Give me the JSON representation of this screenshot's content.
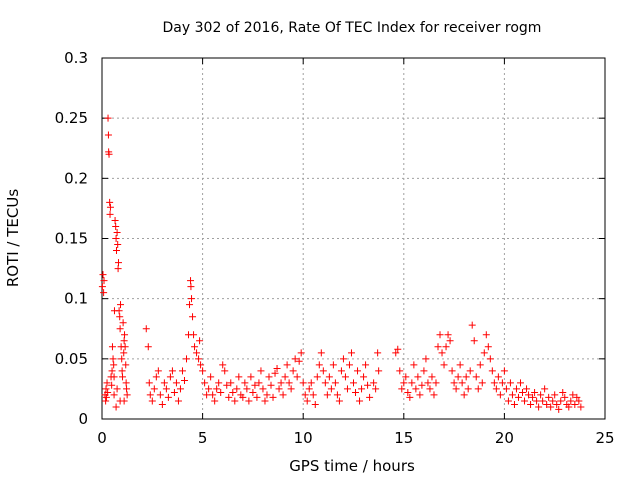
{
  "chart_data": {
    "type": "scatter",
    "title": "Day 302 of 2016, Rate Of TEC Index for receiver rogm",
    "xlabel": "GPS time / hours",
    "ylabel": "ROTI / TECUs",
    "xlim": [
      0,
      25
    ],
    "ylim": [
      0,
      0.3
    ],
    "xticks": [
      0,
      5,
      10,
      15,
      20,
      25
    ],
    "xtick_labels": [
      "0",
      "5",
      "10",
      "15",
      "20",
      "25"
    ],
    "yticks": [
      0,
      0.05,
      0.1,
      0.15,
      0.2,
      0.25,
      0.3
    ],
    "ytick_labels": [
      "0",
      "0.05",
      "0.1",
      "0.15",
      "0.2",
      "0.25",
      "0.3"
    ],
    "grid": true,
    "marker": "+",
    "series": [
      {
        "name": "ROTI",
        "color": "#ff0000",
        "points": [
          [
            0.02,
            0.11
          ],
          [
            0.05,
            0.12
          ],
          [
            0.08,
            0.105
          ],
          [
            0.1,
            0.115
          ],
          [
            0.15,
            0.02
          ],
          [
            0.18,
            0.015
          ],
          [
            0.2,
            0.025
          ],
          [
            0.22,
            0.018
          ],
          [
            0.25,
            0.03
          ],
          [
            0.28,
            0.022
          ],
          [
            0.3,
            0.25
          ],
          [
            0.32,
            0.236
          ],
          [
            0.33,
            0.222
          ],
          [
            0.35,
            0.22
          ],
          [
            0.38,
            0.18
          ],
          [
            0.4,
            0.17
          ],
          [
            0.42,
            0.176
          ],
          [
            0.45,
            0.035
          ],
          [
            0.48,
            0.028
          ],
          [
            0.5,
            0.04
          ],
          [
            0.52,
            0.06
          ],
          [
            0.55,
            0.05
          ],
          [
            0.58,
            0.045
          ],
          [
            0.6,
            0.02
          ],
          [
            0.62,
            0.09
          ],
          [
            0.65,
            0.165
          ],
          [
            0.68,
            0.16
          ],
          [
            0.7,
            0.15
          ],
          [
            0.72,
            0.14
          ],
          [
            0.75,
            0.155
          ],
          [
            0.78,
            0.145
          ],
          [
            0.8,
            0.125
          ],
          [
            0.82,
            0.13
          ],
          [
            0.85,
            0.09
          ],
          [
            0.88,
            0.085
          ],
          [
            0.9,
            0.075
          ],
          [
            0.92,
            0.095
          ],
          [
            0.95,
            0.06
          ],
          [
            0.98,
            0.05
          ],
          [
            1.0,
            0.04
          ],
          [
            1.02,
            0.035
          ],
          [
            1.05,
            0.08
          ],
          [
            1.08,
            0.055
          ],
          [
            1.1,
            0.065
          ],
          [
            1.12,
            0.07
          ],
          [
            1.15,
            0.06
          ],
          [
            1.18,
            0.045
          ],
          [
            1.2,
            0.03
          ],
          [
            1.22,
            0.025
          ],
          [
            1.25,
            0.02
          ],
          [
            0.7,
            0.01
          ],
          [
            0.9,
            0.015
          ],
          [
            1.1,
            0.015
          ],
          [
            0.6,
            0.035
          ],
          [
            0.75,
            0.025
          ],
          [
            2.2,
            0.075
          ],
          [
            2.3,
            0.06
          ],
          [
            2.35,
            0.03
          ],
          [
            2.4,
            0.02
          ],
          [
            2.5,
            0.015
          ],
          [
            2.6,
            0.025
          ],
          [
            2.7,
            0.035
          ],
          [
            2.8,
            0.04
          ],
          [
            2.9,
            0.02
          ],
          [
            3.0,
            0.012
          ],
          [
            3.1,
            0.03
          ],
          [
            3.2,
            0.025
          ],
          [
            3.3,
            0.018
          ],
          [
            3.4,
            0.035
          ],
          [
            3.5,
            0.04
          ],
          [
            3.6,
            0.022
          ],
          [
            3.7,
            0.03
          ],
          [
            3.8,
            0.015
          ],
          [
            3.9,
            0.025
          ],
          [
            4.0,
            0.04
          ],
          [
            4.1,
            0.032
          ],
          [
            4.2,
            0.05
          ],
          [
            4.3,
            0.07
          ],
          [
            4.35,
            0.095
          ],
          [
            4.4,
            0.115
          ],
          [
            4.42,
            0.11
          ],
          [
            4.45,
            0.1
          ],
          [
            4.5,
            0.085
          ],
          [
            4.55,
            0.07
          ],
          [
            4.6,
            0.06
          ],
          [
            4.7,
            0.055
          ],
          [
            4.8,
            0.05
          ],
          [
            4.85,
            0.065
          ],
          [
            4.9,
            0.045
          ],
          [
            5.0,
            0.04
          ],
          [
            5.1,
            0.03
          ],
          [
            5.2,
            0.02
          ],
          [
            5.3,
            0.025
          ],
          [
            5.4,
            0.035
          ],
          [
            5.5,
            0.02
          ],
          [
            5.6,
            0.015
          ],
          [
            5.7,
            0.025
          ],
          [
            5.8,
            0.03
          ],
          [
            5.9,
            0.022
          ],
          [
            6.0,
            0.045
          ],
          [
            6.1,
            0.04
          ],
          [
            6.2,
            0.028
          ],
          [
            6.3,
            0.018
          ],
          [
            6.4,
            0.03
          ],
          [
            6.5,
            0.022
          ],
          [
            6.6,
            0.015
          ],
          [
            6.7,
            0.025
          ],
          [
            6.8,
            0.035
          ],
          [
            6.9,
            0.02
          ],
          [
            7.0,
            0.018
          ],
          [
            7.1,
            0.03
          ],
          [
            7.2,
            0.025
          ],
          [
            7.3,
            0.015
          ],
          [
            7.4,
            0.035
          ],
          [
            7.5,
            0.022
          ],
          [
            7.6,
            0.028
          ],
          [
            7.7,
            0.018
          ],
          [
            7.8,
            0.03
          ],
          [
            7.9,
            0.04
          ],
          [
            8.0,
            0.025
          ],
          [
            8.1,
            0.015
          ],
          [
            8.2,
            0.02
          ],
          [
            8.3,
            0.035
          ],
          [
            8.4,
            0.028
          ],
          [
            8.5,
            0.018
          ],
          [
            8.6,
            0.038
          ],
          [
            8.7,
            0.042
          ],
          [
            8.8,
            0.025
          ],
          [
            8.9,
            0.03
          ],
          [
            9.0,
            0.02
          ],
          [
            9.1,
            0.035
          ],
          [
            9.2,
            0.045
          ],
          [
            9.3,
            0.03
          ],
          [
            9.4,
            0.025
          ],
          [
            9.5,
            0.04
          ],
          [
            9.6,
            0.05
          ],
          [
            9.7,
            0.035
          ],
          [
            9.8,
            0.048
          ],
          [
            9.9,
            0.055
          ],
          [
            10.0,
            0.03
          ],
          [
            10.1,
            0.02
          ],
          [
            10.2,
            0.015
          ],
          [
            10.3,
            0.025
          ],
          [
            10.4,
            0.03
          ],
          [
            10.5,
            0.02
          ],
          [
            10.6,
            0.012
          ],
          [
            10.7,
            0.035
          ],
          [
            10.8,
            0.045
          ],
          [
            10.9,
            0.055
          ],
          [
            11.0,
            0.04
          ],
          [
            11.1,
            0.03
          ],
          [
            11.2,
            0.02
          ],
          [
            11.3,
            0.035
          ],
          [
            11.4,
            0.025
          ],
          [
            11.5,
            0.045
          ],
          [
            11.6,
            0.03
          ],
          [
            11.7,
            0.02
          ],
          [
            11.8,
            0.015
          ],
          [
            11.9,
            0.04
          ],
          [
            12.0,
            0.05
          ],
          [
            12.1,
            0.035
          ],
          [
            12.2,
            0.025
          ],
          [
            12.3,
            0.045
          ],
          [
            12.4,
            0.055
          ],
          [
            12.5,
            0.03
          ],
          [
            12.6,
            0.022
          ],
          [
            12.7,
            0.04
          ],
          [
            12.8,
            0.015
          ],
          [
            12.9,
            0.025
          ],
          [
            13.0,
            0.035
          ],
          [
            13.1,
            0.045
          ],
          [
            13.2,
            0.028
          ],
          [
            13.3,
            0.018
          ],
          [
            13.5,
            0.03
          ],
          [
            13.6,
            0.025
          ],
          [
            13.7,
            0.055
          ],
          [
            13.75,
            0.04
          ],
          [
            14.6,
            0.055
          ],
          [
            14.7,
            0.058
          ],
          [
            14.8,
            0.04
          ],
          [
            14.9,
            0.025
          ],
          [
            15.0,
            0.03
          ],
          [
            15.1,
            0.035
          ],
          [
            15.2,
            0.022
          ],
          [
            15.3,
            0.018
          ],
          [
            15.4,
            0.03
          ],
          [
            15.5,
            0.045
          ],
          [
            15.6,
            0.025
          ],
          [
            15.7,
            0.035
          ],
          [
            15.8,
            0.02
          ],
          [
            15.9,
            0.028
          ],
          [
            16.0,
            0.04
          ],
          [
            16.1,
            0.05
          ],
          [
            16.2,
            0.03
          ],
          [
            16.3,
            0.025
          ],
          [
            16.4,
            0.035
          ],
          [
            16.5,
            0.02
          ],
          [
            16.6,
            0.03
          ],
          [
            16.7,
            0.06
          ],
          [
            16.8,
            0.07
          ],
          [
            16.9,
            0.055
          ],
          [
            17.0,
            0.045
          ],
          [
            17.1,
            0.06
          ],
          [
            17.2,
            0.07
          ],
          [
            17.3,
            0.065
          ],
          [
            17.4,
            0.04
          ],
          [
            17.5,
            0.03
          ],
          [
            17.6,
            0.025
          ],
          [
            17.7,
            0.035
          ],
          [
            17.8,
            0.045
          ],
          [
            17.9,
            0.03
          ],
          [
            18.0,
            0.02
          ],
          [
            18.1,
            0.035
          ],
          [
            18.2,
            0.025
          ],
          [
            18.3,
            0.04
          ],
          [
            18.4,
            0.078
          ],
          [
            18.5,
            0.065
          ],
          [
            18.6,
            0.035
          ],
          [
            18.7,
            0.025
          ],
          [
            18.8,
            0.045
          ],
          [
            18.9,
            0.03
          ],
          [
            19.0,
            0.055
          ],
          [
            19.1,
            0.07
          ],
          [
            19.2,
            0.06
          ],
          [
            19.3,
            0.05
          ],
          [
            19.4,
            0.04
          ],
          [
            19.5,
            0.03
          ],
          [
            19.6,
            0.025
          ],
          [
            19.7,
            0.035
          ],
          [
            19.8,
            0.02
          ],
          [
            19.9,
            0.03
          ],
          [
            20.0,
            0.04
          ],
          [
            20.1,
            0.025
          ],
          [
            20.2,
            0.015
          ],
          [
            20.3,
            0.03
          ],
          [
            20.4,
            0.02
          ],
          [
            20.5,
            0.012
          ],
          [
            20.6,
            0.025
          ],
          [
            20.7,
            0.018
          ],
          [
            20.8,
            0.03
          ],
          [
            20.9,
            0.022
          ],
          [
            21.0,
            0.015
          ],
          [
            21.1,
            0.025
          ],
          [
            21.2,
            0.02
          ],
          [
            21.3,
            0.012
          ],
          [
            21.4,
            0.018
          ],
          [
            21.5,
            0.022
          ],
          [
            21.6,
            0.015
          ],
          [
            21.7,
            0.01
          ],
          [
            21.8,
            0.02
          ],
          [
            21.9,
            0.015
          ],
          [
            22.0,
            0.025
          ],
          [
            22.1,
            0.012
          ],
          [
            22.2,
            0.018
          ],
          [
            22.3,
            0.01
          ],
          [
            22.4,
            0.015
          ],
          [
            22.5,
            0.02
          ],
          [
            22.6,
            0.012
          ],
          [
            22.7,
            0.008
          ],
          [
            22.8,
            0.015
          ],
          [
            22.9,
            0.022
          ],
          [
            23.0,
            0.018
          ],
          [
            23.1,
            0.012
          ],
          [
            23.2,
            0.01
          ],
          [
            23.3,
            0.015
          ],
          [
            23.4,
            0.02
          ],
          [
            23.5,
            0.012
          ],
          [
            23.6,
            0.018
          ],
          [
            23.7,
            0.015
          ],
          [
            23.8,
            0.01
          ]
        ]
      }
    ]
  }
}
